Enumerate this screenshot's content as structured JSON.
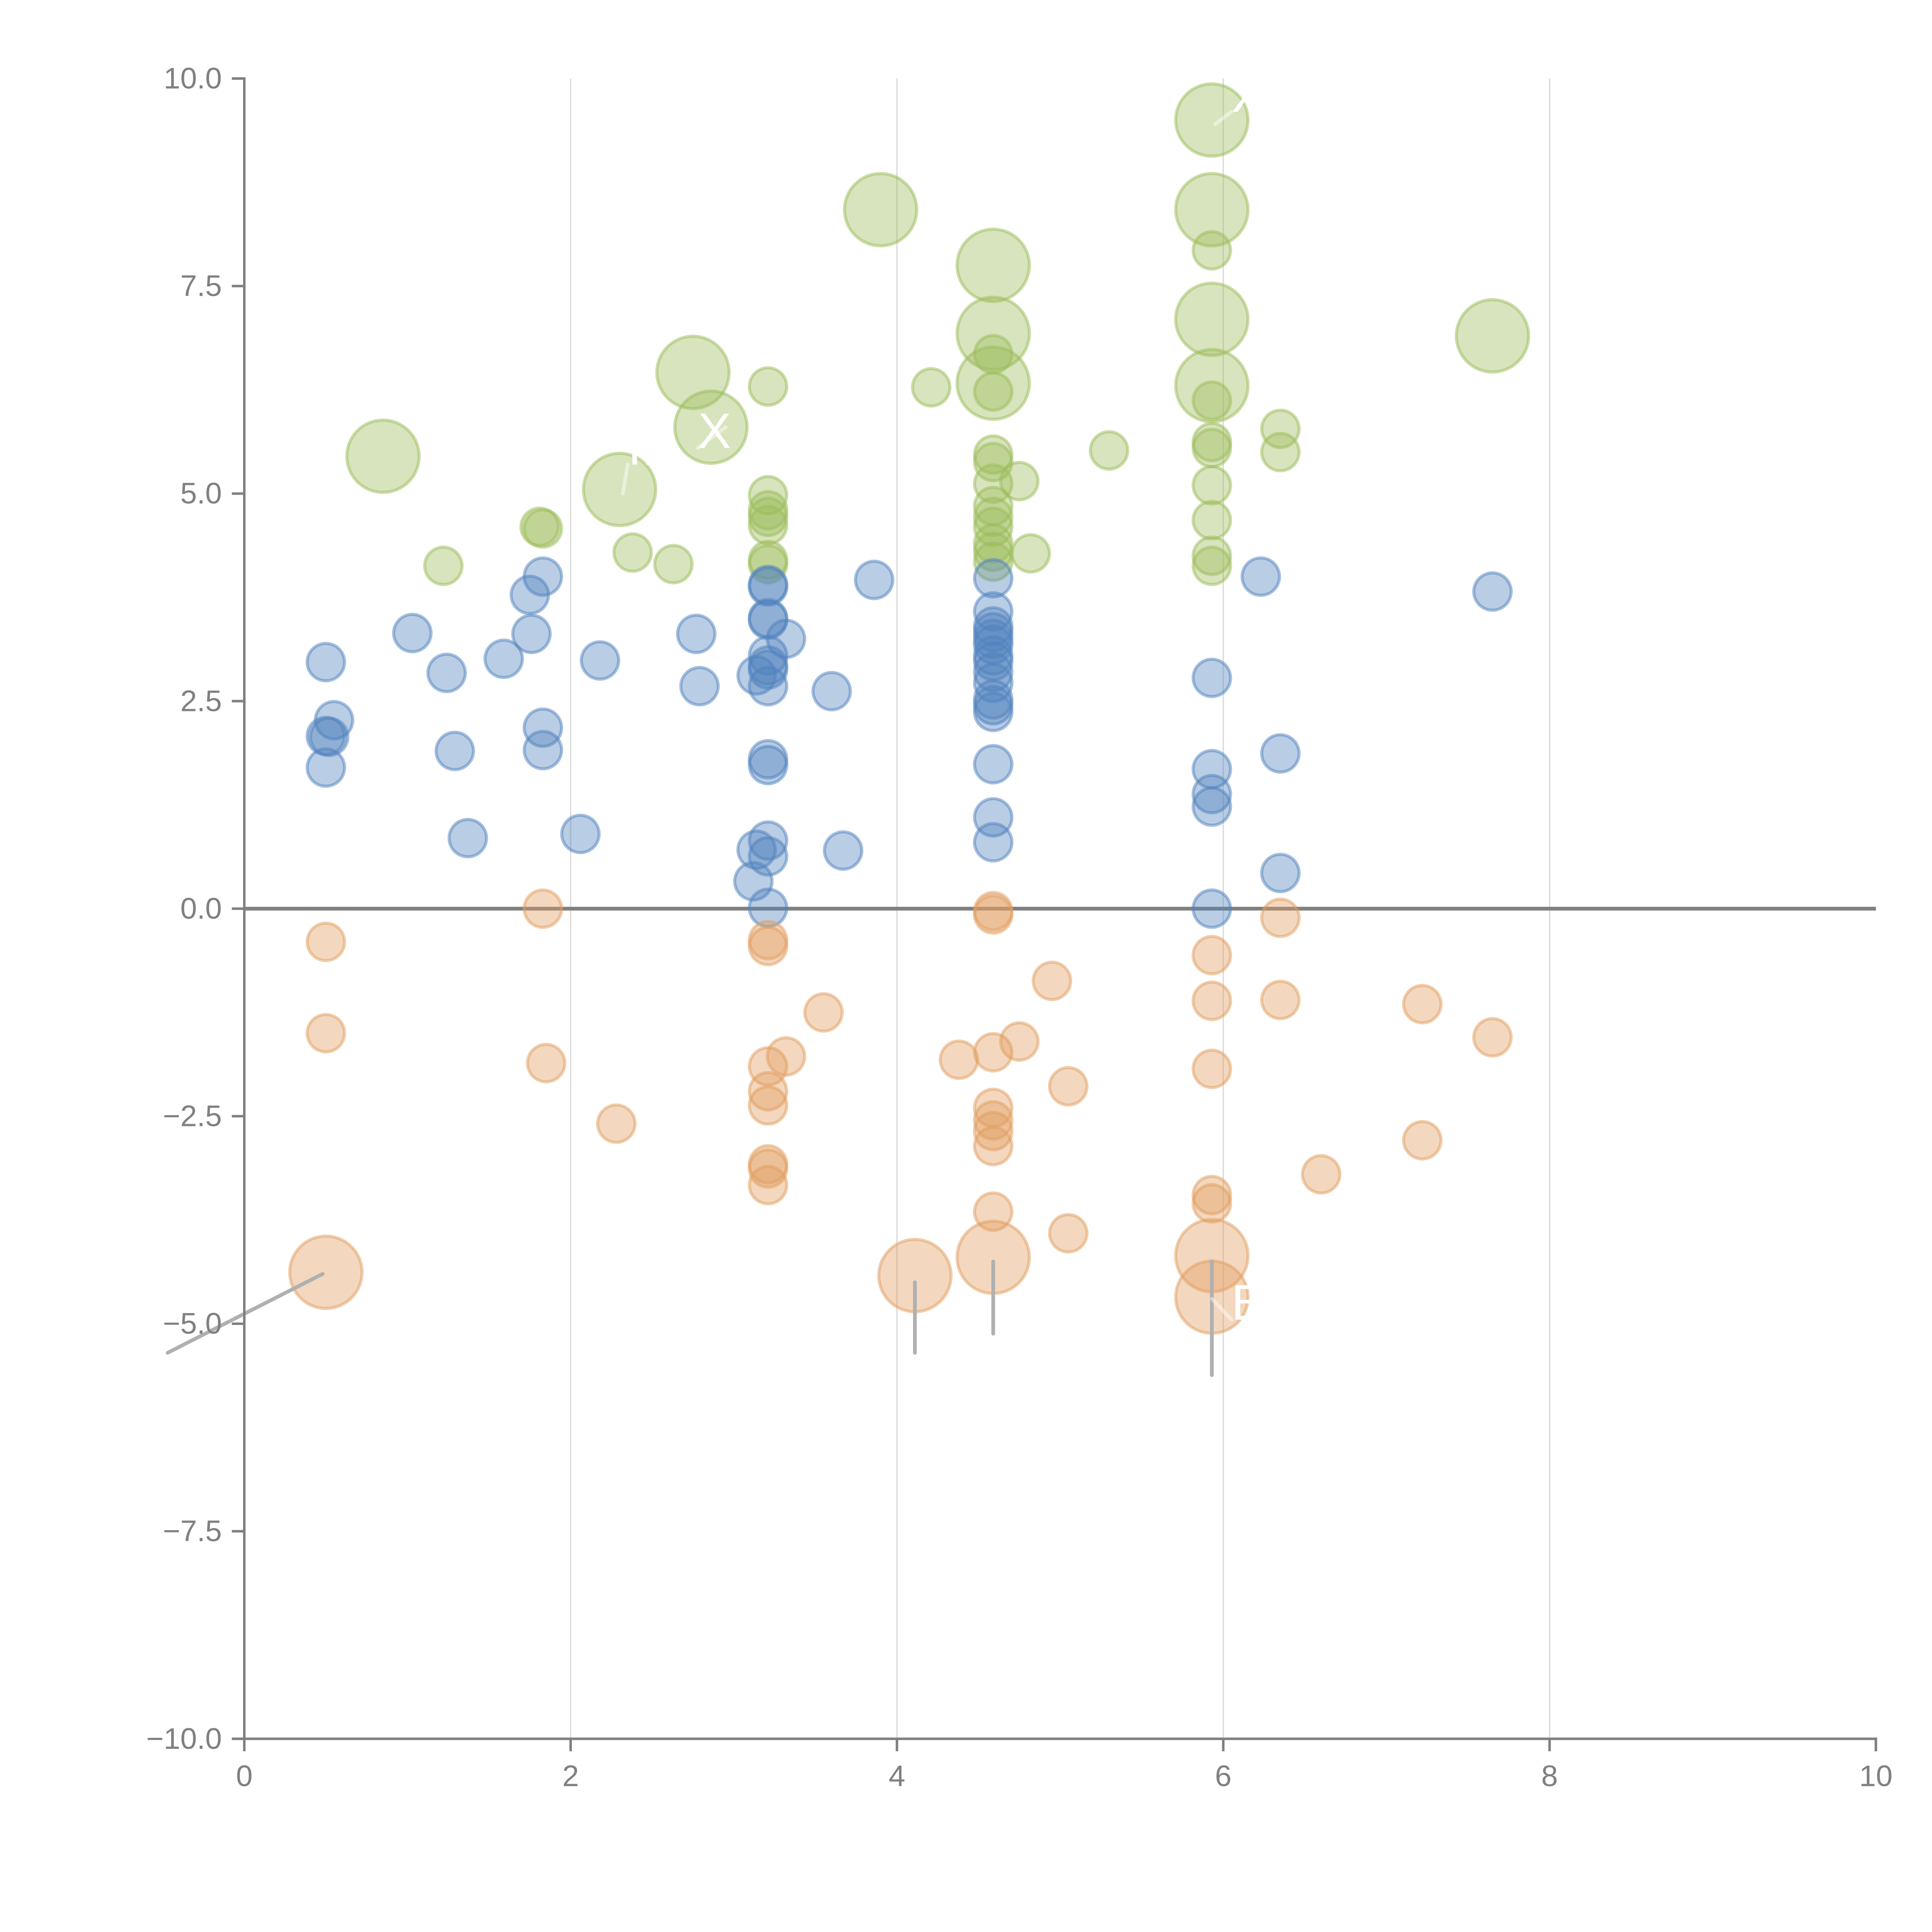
{
  "chart_data": {
    "type": "scatter",
    "title": "",
    "xlabel": "",
    "ylabel": "",
    "xlim": [
      0,
      10
    ],
    "ylim": [
      -10,
      10
    ],
    "grid": "vertical-only",
    "legend": "none",
    "x_ticks": [
      "0",
      "2",
      "4",
      "6",
      "8",
      "10"
    ],
    "x_tick_values": [
      0,
      2,
      4,
      6,
      8,
      10
    ],
    "y_ticks": [
      "10.0",
      "7.5",
      "5.0",
      "2.5",
      "0.0",
      "−2.5",
      "−5.0",
      "−7.5",
      "−10.0"
    ],
    "y_tick_values": [
      10,
      7.5,
      5,
      2.5,
      0,
      -2.5,
      -5,
      -7.5,
      -10
    ],
    "reference_line_y": 0,
    "series": [
      {
        "name": "green",
        "color": "#9bbb59",
        "points": [
          {
            "x": 0.85,
            "y": 5.45,
            "size": "large"
          },
          {
            "x": 1.22,
            "y": 4.13,
            "size": "small"
          },
          {
            "x": 1.81,
            "y": 4.6,
            "size": "small"
          },
          {
            "x": 1.83,
            "y": 4.58,
            "size": "small"
          },
          {
            "x": 2.3,
            "y": 5.05,
            "size": "large"
          },
          {
            "x": 2.38,
            "y": 4.29,
            "size": "small"
          },
          {
            "x": 2.63,
            "y": 4.15,
            "size": "small"
          },
          {
            "x": 2.75,
            "y": 6.46,
            "size": "large"
          },
          {
            "x": 2.86,
            "y": 5.8,
            "size": "large"
          },
          {
            "x": 3.21,
            "y": 6.29,
            "size": "small"
          },
          {
            "x": 3.21,
            "y": 4.98,
            "size": "small"
          },
          {
            "x": 3.21,
            "y": 4.8,
            "size": "small"
          },
          {
            "x": 3.21,
            "y": 4.72,
            "size": "small"
          },
          {
            "x": 3.21,
            "y": 4.62,
            "size": "small"
          },
          {
            "x": 3.21,
            "y": 4.2,
            "size": "small"
          },
          {
            "x": 3.21,
            "y": 4.15,
            "size": "small"
          },
          {
            "x": 3.9,
            "y": 8.42,
            "size": "large"
          },
          {
            "x": 4.21,
            "y": 6.28,
            "size": "small"
          },
          {
            "x": 4.59,
            "y": 7.75,
            "size": "large"
          },
          {
            "x": 4.59,
            "y": 6.93,
            "size": "large"
          },
          {
            "x": 4.59,
            "y": 6.68,
            "size": "small"
          },
          {
            "x": 4.59,
            "y": 6.33,
            "size": "large"
          },
          {
            "x": 4.59,
            "y": 6.23,
            "size": "small"
          },
          {
            "x": 4.59,
            "y": 5.47,
            "size": "small"
          },
          {
            "x": 4.59,
            "y": 5.38,
            "size": "small"
          },
          {
            "x": 4.59,
            "y": 5.12,
            "size": "small"
          },
          {
            "x": 4.75,
            "y": 5.15,
            "size": "small"
          },
          {
            "x": 4.59,
            "y": 4.85,
            "size": "small"
          },
          {
            "x": 4.59,
            "y": 4.72,
            "size": "small"
          },
          {
            "x": 4.59,
            "y": 4.6,
            "size": "small"
          },
          {
            "x": 4.59,
            "y": 4.4,
            "size": "small"
          },
          {
            "x": 4.59,
            "y": 4.3,
            "size": "small"
          },
          {
            "x": 4.59,
            "y": 4.18,
            "size": "small"
          },
          {
            "x": 4.82,
            "y": 4.28,
            "size": "small"
          },
          {
            "x": 5.3,
            "y": 5.52,
            "size": "small"
          },
          {
            "x": 5.93,
            "y": 9.5,
            "size": "large"
          },
          {
            "x": 5.93,
            "y": 8.42,
            "size": "large"
          },
          {
            "x": 5.93,
            "y": 7.93,
            "size": "small"
          },
          {
            "x": 5.93,
            "y": 7.1,
            "size": "large"
          },
          {
            "x": 5.93,
            "y": 6.3,
            "size": "large"
          },
          {
            "x": 5.93,
            "y": 6.12,
            "size": "small"
          },
          {
            "x": 5.93,
            "y": 5.62,
            "size": "small"
          },
          {
            "x": 5.93,
            "y": 5.55,
            "size": "small"
          },
          {
            "x": 5.93,
            "y": 5.1,
            "size": "small"
          },
          {
            "x": 5.93,
            "y": 4.68,
            "size": "small"
          },
          {
            "x": 5.93,
            "y": 4.25,
            "size": "small"
          },
          {
            "x": 5.93,
            "y": 4.13,
            "size": "small"
          },
          {
            "x": 6.35,
            "y": 5.78,
            "size": "small"
          },
          {
            "x": 6.35,
            "y": 5.5,
            "size": "small"
          },
          {
            "x": 7.65,
            "y": 6.9,
            "size": "large"
          }
        ]
      },
      {
        "name": "blue",
        "color": "#4f81bd",
        "points": [
          {
            "x": 0.5,
            "y": 2.97,
            "size": "small"
          },
          {
            "x": 0.55,
            "y": 2.27,
            "size": "small"
          },
          {
            "x": 0.5,
            "y": 2.08,
            "size": "small"
          },
          {
            "x": 0.52,
            "y": 2.07,
            "size": "small"
          },
          {
            "x": 0.5,
            "y": 1.7,
            "size": "small"
          },
          {
            "x": 1.03,
            "y": 3.32,
            "size": "small"
          },
          {
            "x": 1.24,
            "y": 2.84,
            "size": "small"
          },
          {
            "x": 1.29,
            "y": 1.9,
            "size": "small"
          },
          {
            "x": 1.37,
            "y": 0.85,
            "size": "small"
          },
          {
            "x": 1.59,
            "y": 3.01,
            "size": "small"
          },
          {
            "x": 1.75,
            "y": 3.78,
            "size": "small"
          },
          {
            "x": 1.76,
            "y": 3.31,
            "size": "small"
          },
          {
            "x": 1.83,
            "y": 4.0,
            "size": "small"
          },
          {
            "x": 1.83,
            "y": 2.18,
            "size": "small"
          },
          {
            "x": 1.83,
            "y": 1.91,
            "size": "small"
          },
          {
            "x": 2.06,
            "y": 0.9,
            "size": "small"
          },
          {
            "x": 2.18,
            "y": 2.99,
            "size": "small"
          },
          {
            "x": 2.77,
            "y": 3.31,
            "size": "small"
          },
          {
            "x": 2.79,
            "y": 2.68,
            "size": "small"
          },
          {
            "x": 3.21,
            "y": 3.9,
            "size": "small"
          },
          {
            "x": 3.21,
            "y": 3.88,
            "size": "small"
          },
          {
            "x": 3.21,
            "y": 3.5,
            "size": "small"
          },
          {
            "x": 3.21,
            "y": 3.48,
            "size": "small"
          },
          {
            "x": 3.32,
            "y": 3.25,
            "size": "small"
          },
          {
            "x": 3.21,
            "y": 3.05,
            "size": "small"
          },
          {
            "x": 3.21,
            "y": 2.93,
            "size": "small"
          },
          {
            "x": 3.21,
            "y": 2.88,
            "size": "small"
          },
          {
            "x": 3.14,
            "y": 2.81,
            "size": "small"
          },
          {
            "x": 3.21,
            "y": 2.68,
            "size": "small"
          },
          {
            "x": 3.21,
            "y": 1.8,
            "size": "small"
          },
          {
            "x": 3.21,
            "y": 1.73,
            "size": "small"
          },
          {
            "x": 3.21,
            "y": 0.82,
            "size": "small"
          },
          {
            "x": 3.14,
            "y": 0.71,
            "size": "small"
          },
          {
            "x": 3.21,
            "y": 0.63,
            "size": "small"
          },
          {
            "x": 3.12,
            "y": 0.33,
            "size": "small"
          },
          {
            "x": 3.21,
            "y": 0.01,
            "size": "small"
          },
          {
            "x": 3.6,
            "y": 2.62,
            "size": "small"
          },
          {
            "x": 3.67,
            "y": 0.7,
            "size": "small"
          },
          {
            "x": 3.86,
            "y": 3.96,
            "size": "small"
          },
          {
            "x": 4.59,
            "y": 3.98,
            "size": "small"
          },
          {
            "x": 4.59,
            "y": 3.58,
            "size": "small"
          },
          {
            "x": 4.59,
            "y": 3.4,
            "size": "small"
          },
          {
            "x": 4.59,
            "y": 3.33,
            "size": "small"
          },
          {
            "x": 4.59,
            "y": 3.25,
            "size": "small"
          },
          {
            "x": 4.59,
            "y": 3.18,
            "size": "small"
          },
          {
            "x": 4.59,
            "y": 3.05,
            "size": "small"
          },
          {
            "x": 4.59,
            "y": 2.98,
            "size": "small"
          },
          {
            "x": 4.59,
            "y": 2.85,
            "size": "small"
          },
          {
            "x": 4.59,
            "y": 2.72,
            "size": "small"
          },
          {
            "x": 4.59,
            "y": 2.52,
            "size": "small"
          },
          {
            "x": 4.59,
            "y": 2.45,
            "size": "small"
          },
          {
            "x": 4.59,
            "y": 2.37,
            "size": "small"
          },
          {
            "x": 4.59,
            "y": 1.74,
            "size": "small"
          },
          {
            "x": 4.59,
            "y": 1.1,
            "size": "small"
          },
          {
            "x": 4.59,
            "y": 0.8,
            "size": "small"
          },
          {
            "x": 5.93,
            "y": 2.78,
            "size": "small"
          },
          {
            "x": 5.93,
            "y": 1.68,
            "size": "small"
          },
          {
            "x": 5.93,
            "y": 1.38,
            "size": "small"
          },
          {
            "x": 5.93,
            "y": 1.23,
            "size": "small"
          },
          {
            "x": 5.93,
            "y": 0.0,
            "size": "small"
          },
          {
            "x": 6.23,
            "y": 4.0,
            "size": "small"
          },
          {
            "x": 6.35,
            "y": 1.87,
            "size": "small"
          },
          {
            "x": 6.35,
            "y": 0.43,
            "size": "small"
          },
          {
            "x": 7.65,
            "y": 3.82,
            "size": "small"
          }
        ]
      },
      {
        "name": "orange",
        "color": "#e19d5f",
        "points": [
          {
            "x": 0.5,
            "y": -0.4,
            "size": "small"
          },
          {
            "x": 0.5,
            "y": -1.5,
            "size": "small"
          },
          {
            "x": 0.5,
            "y": -4.38,
            "size": "large"
          },
          {
            "x": 1.83,
            "y": 0.0,
            "size": "small"
          },
          {
            "x": 1.85,
            "y": -1.86,
            "size": "small"
          },
          {
            "x": 2.28,
            "y": -2.59,
            "size": "small"
          },
          {
            "x": 3.21,
            "y": -0.38,
            "size": "small"
          },
          {
            "x": 3.21,
            "y": -0.45,
            "size": "small"
          },
          {
            "x": 3.21,
            "y": -1.9,
            "size": "small"
          },
          {
            "x": 3.32,
            "y": -1.78,
            "size": "small"
          },
          {
            "x": 3.21,
            "y": -2.2,
            "size": "small"
          },
          {
            "x": 3.21,
            "y": -2.37,
            "size": "small"
          },
          {
            "x": 3.21,
            "y": -3.08,
            "size": "small"
          },
          {
            "x": 3.21,
            "y": -3.13,
            "size": "small"
          },
          {
            "x": 3.21,
            "y": -3.33,
            "size": "small"
          },
          {
            "x": 3.55,
            "y": -1.25,
            "size": "small"
          },
          {
            "x": 4.11,
            "y": -4.42,
            "size": "large"
          },
          {
            "x": 4.38,
            "y": -1.82,
            "size": "small"
          },
          {
            "x": 4.59,
            "y": -0.03,
            "size": "small"
          },
          {
            "x": 4.59,
            "y": -0.07,
            "size": "small"
          },
          {
            "x": 4.59,
            "y": -1.73,
            "size": "small"
          },
          {
            "x": 4.75,
            "y": -1.6,
            "size": "small"
          },
          {
            "x": 4.59,
            "y": -2.4,
            "size": "small"
          },
          {
            "x": 4.59,
            "y": -2.55,
            "size": "small"
          },
          {
            "x": 4.59,
            "y": -2.68,
            "size": "small"
          },
          {
            "x": 4.59,
            "y": -2.86,
            "size": "small"
          },
          {
            "x": 4.59,
            "y": -3.65,
            "size": "small"
          },
          {
            "x": 4.59,
            "y": -4.2,
            "size": "large"
          },
          {
            "x": 4.95,
            "y": -0.87,
            "size": "small"
          },
          {
            "x": 5.05,
            "y": -2.14,
            "size": "small"
          },
          {
            "x": 5.05,
            "y": -3.91,
            "size": "small"
          },
          {
            "x": 5.93,
            "y": -0.56,
            "size": "small"
          },
          {
            "x": 5.93,
            "y": -1.11,
            "size": "small"
          },
          {
            "x": 5.93,
            "y": -1.93,
            "size": "small"
          },
          {
            "x": 5.93,
            "y": -3.45,
            "size": "small"
          },
          {
            "x": 5.93,
            "y": -3.55,
            "size": "small"
          },
          {
            "x": 5.93,
            "y": -4.18,
            "size": "large"
          },
          {
            "x": 5.93,
            "y": -4.68,
            "size": "large"
          },
          {
            "x": 6.35,
            "y": -0.11,
            "size": "small"
          },
          {
            "x": 6.35,
            "y": -1.1,
            "size": "small"
          },
          {
            "x": 6.6,
            "y": -3.2,
            "size": "small"
          },
          {
            "x": 7.22,
            "y": -1.15,
            "size": "small"
          },
          {
            "x": 7.22,
            "y": -2.79,
            "size": "small"
          },
          {
            "x": 7.65,
            "y": -1.55,
            "size": "small"
          }
        ]
      }
    ],
    "annotations": [
      {
        "text": "X",
        "x": 6.05,
        "y": 9.6,
        "anchor_x": 5.95,
        "anchor_y": 9.45
      },
      {
        "text": "X",
        "x": 2.78,
        "y": 5.55,
        "anchor_x": 2.95,
        "anchor_y": 5.8
      },
      {
        "text": "II",
        "x": 2.35,
        "y": 5.35,
        "anchor_x": 2.32,
        "anchor_y": 5.0
      },
      {
        "text": "B",
        "x": 6.05,
        "y": -4.95,
        "anchor_x": 5.93,
        "anchor_y": -4.7
      }
    ],
    "leader_lines": [
      {
        "x1": 0.48,
        "y1": -4.4,
        "x2": -0.47,
        "y2": -5.35
      },
      {
        "x1": 4.11,
        "y1": -4.5,
        "x2": 4.11,
        "y2": -5.35
      },
      {
        "x1": 4.59,
        "y1": -4.25,
        "x2": 4.59,
        "y2": -5.12
      },
      {
        "x1": 5.93,
        "y1": -4.25,
        "x2": 5.93,
        "y2": -5.62
      }
    ]
  }
}
